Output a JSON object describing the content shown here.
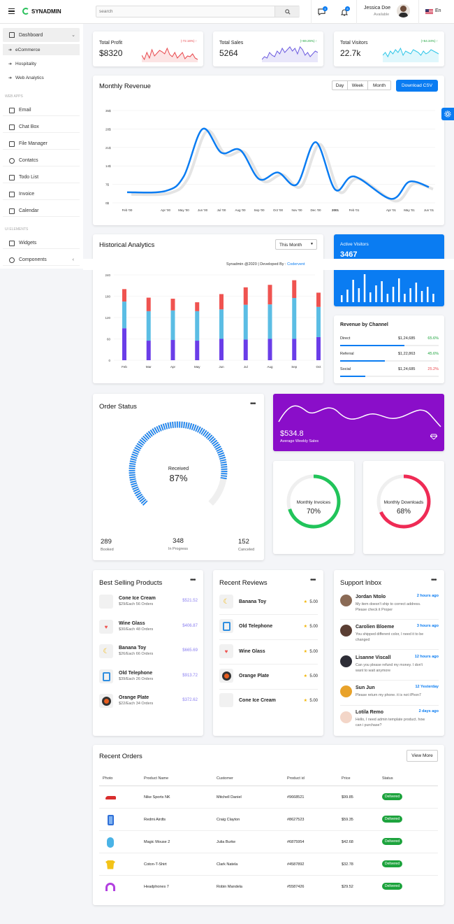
{
  "header": {
    "brand": "SYNADMIN",
    "search_placeholder": "search",
    "messages_count": "4",
    "notifications_count": "8",
    "user_name": "Jessica Doe",
    "user_status": "Available",
    "language": "En"
  },
  "sidebar": {
    "dashboard": "Dashboard",
    "sub_items": [
      "eCommerce",
      "Hospitality",
      "Web Analytics"
    ],
    "web_apps_label": "WEB APPS",
    "apps": [
      "Email",
      "Chat Box",
      "File Manager",
      "Contatcs",
      "Todo List",
      "Invoice",
      "Calendar"
    ],
    "ui_label": "UI ELEMENTS",
    "ui": [
      "Widgets",
      "Components"
    ]
  },
  "stats": [
    {
      "label": "Total Profit",
      "value": "$8320",
      "delta": "(-72.16%) ↑",
      "delta_color": "#e8474c",
      "spark_color": "#e8474c"
    },
    {
      "label": "Total Sales",
      "value": "5264",
      "delta": "(+69.25%) ↑",
      "delta_color": "#1da33d",
      "spark_color": "#6e5de0"
    },
    {
      "label": "Total Visitors",
      "value": "22.7k",
      "delta": "(+54.34%) ↑",
      "delta_color": "#1da33d",
      "spark_color": "#2ec6e8"
    }
  ],
  "monthly_revenue": {
    "title": "Monthly Revenue",
    "buttons": [
      "Day",
      "Week",
      "Month"
    ],
    "download": "Download CSV"
  },
  "chart_data": [
    {
      "type": "line",
      "title": "Monthly Revenue",
      "x": [
        "Feb '00",
        "Apr '00",
        "May '00",
        "Jun '00",
        "Jul '00",
        "Aug '00",
        "Sep '00",
        "Oct '00",
        "Nov '00",
        "Dec '00",
        "2001",
        "Feb '01",
        "Apr '01",
        "May '01",
        "Jun '01"
      ],
      "y_ticks": [
        "0$",
        "7$",
        "14$",
        "21$",
        "28$",
        "35$"
      ],
      "ylim": [
        0,
        35
      ],
      "series": [
        {
          "values": [
            4,
            4.5,
            10,
            28,
            19,
            20,
            9,
            11.5,
            7,
            23,
            5,
            10,
            1.5,
            8,
            6
          ]
        }
      ]
    },
    {
      "type": "bar",
      "title": "Historical Analytics",
      "categories": [
        "Feb",
        "Mar",
        "Apr",
        "May",
        "Jun",
        "Jul",
        "Aug",
        "Sep",
        "Oct"
      ],
      "y_ticks": [
        "0",
        "60",
        "120",
        "180",
        "240"
      ],
      "ylim": [
        0,
        240
      ],
      "series": [
        {
          "values": [
            90,
            55,
            57,
            55,
            60,
            58,
            60,
            60,
            65
          ],
          "color": "#6a3de8"
        },
        {
          "values": [
            75,
            83,
            83,
            83,
            83,
            98,
            97,
            115,
            85
          ],
          "color": "#5bbde4"
        },
        {
          "values": [
            35,
            38,
            33,
            25,
            43,
            49,
            55,
            50,
            40
          ],
          "color": "#ef5350"
        }
      ]
    }
  ],
  "historical": {
    "title": "Historical Analytics",
    "period": "This Month"
  },
  "footer": {
    "text": "Synadmin @2020 | Developed By : ",
    "link": "Codervent"
  },
  "active_visitors": {
    "title": "Active Visitors",
    "value": "3467",
    "bars": [
      0.25,
      0.45,
      0.8,
      0.5,
      1.0,
      0.35,
      0.6,
      0.75,
      0.3,
      0.55,
      0.85,
      0.3,
      0.5,
      0.7,
      0.4,
      0.55,
      0.3
    ]
  },
  "revenue_channel": {
    "title": "Revenue by Channel",
    "rows": [
      {
        "name": "Direct",
        "amount": "$1,24,685",
        "pct": "65.6%",
        "pct_color": "#1da33d",
        "fill": 0.656
      },
      {
        "name": "Referral",
        "amount": "$1,22,863",
        "pct": "45.6%",
        "pct_color": "#1da33d",
        "fill": 0.456
      },
      {
        "name": "Social",
        "amount": "$1,24,685",
        "pct": "25.2%",
        "pct_color": "#e8474c",
        "fill": 0.252
      }
    ]
  },
  "order_status": {
    "title": "Order Status",
    "center_label": "Received",
    "center_value": "87%",
    "progress": 0.87,
    "stats": [
      {
        "value": "289",
        "label": "Booked"
      },
      {
        "value": "348",
        "label": "In Progress"
      },
      {
        "value": "152",
        "label": "Canceled"
      }
    ]
  },
  "weekly_sales": {
    "value": "$534.8",
    "label": "Average Weekly Sales"
  },
  "monthly_invoices": {
    "label": "Monthly Invoices",
    "value": "70%",
    "progress": 0.7,
    "color": "#21c45a"
  },
  "monthly_downloads": {
    "label": "Monthly Downloads",
    "value": "68%",
    "progress": 0.68,
    "color": "#ef2b55"
  },
  "best_selling": {
    "title": "Best Selling Products",
    "items": [
      {
        "name": "Cone Ice Cream",
        "sub": "$29/Each 56 Orders",
        "price": "$521.52",
        "icon": "ice-cream-icon"
      },
      {
        "name": "Wine Glass",
        "sub": "$30/Each 48 Orders",
        "price": "$406.87",
        "icon": "wine-glass-icon"
      },
      {
        "name": "Banana Toy",
        "sub": "$26/Each 66 Orders",
        "price": "$665.69",
        "icon": "banana-icon"
      },
      {
        "name": "Old Telephone",
        "sub": "$39/Each 26 Orders",
        "price": "$913.72",
        "icon": "telephone-icon"
      },
      {
        "name": "Orange Plate",
        "sub": "$22/Each 34 Orders",
        "price": "$372.62",
        "icon": "orange-plate-icon"
      }
    ]
  },
  "reviews": {
    "title": "Recent Reviews",
    "items": [
      {
        "name": "Banana Toy",
        "rating": "5.00",
        "icon": "banana-icon"
      },
      {
        "name": "Old Telephone",
        "rating": "5.00",
        "icon": "telephone-icon"
      },
      {
        "name": "Wine Glass",
        "rating": "5.00",
        "icon": "wine-glass-icon"
      },
      {
        "name": "Orange Plate",
        "rating": "5.00",
        "icon": "orange-plate-icon"
      },
      {
        "name": "Cone Ice Cream",
        "rating": "5.00",
        "icon": "ice-cream-icon"
      }
    ]
  },
  "inbox": {
    "title": "Support Inbox",
    "items": [
      {
        "name": "Jordan Ntolo",
        "time": "2 hours ago",
        "msg1": "My item doesn't ship to correct address.",
        "msg2": "Please check it Proper"
      },
      {
        "name": "Carolien Bloeme",
        "time": "3 hours ago",
        "msg1": "You shipped different color, I need it to be",
        "msg2": "changed"
      },
      {
        "name": "Lisanne Viscall",
        "time": "12 hours ago",
        "msg1": "Can you please refund my money. I don't",
        "msg2": "want to wait anymore"
      },
      {
        "name": "Sun Jun",
        "time": "12 Yesterday",
        "msg1": "Please return my phone. it is not iPhon7",
        "msg2": ""
      },
      {
        "name": "Lotila Remo",
        "time": "2 days ago",
        "msg1": "Hello, I need admin template product. how",
        "msg2": "can i purchase?"
      }
    ]
  },
  "orders": {
    "title": "Recent Orders",
    "view_more": "View More",
    "columns": [
      "Photo",
      "Product Name",
      "Customer",
      "Product id",
      "Price",
      "Status"
    ],
    "rows": [
      {
        "product": "Nike Sports NK",
        "customer": "Mitchell Daniel",
        "id": "#9668521",
        "price": "$99.85",
        "status": "Delivered",
        "icon": "sneaker-icon"
      },
      {
        "product": "Redmi Airdts",
        "customer": "Craig Clayton",
        "id": "#8627523",
        "price": "$59.35",
        "status": "Delivered",
        "icon": "phone-icon"
      },
      {
        "product": "Magic Mouse 2",
        "customer": "Julia Burke",
        "id": "#6875954",
        "price": "$42.68",
        "status": "Delivered",
        "icon": "mouse-icon"
      },
      {
        "product": "Coton-T-Shirt",
        "customer": "Clark Natela",
        "id": "#4587892",
        "price": "$32.78",
        "status": "Delivered",
        "icon": "tshirt-icon"
      },
      {
        "product": "Headphones 7",
        "customer": "Robin Mandela",
        "id": "#5587426",
        "price": "$29.52",
        "status": "Delivered",
        "icon": "headphones-icon"
      }
    ]
  }
}
